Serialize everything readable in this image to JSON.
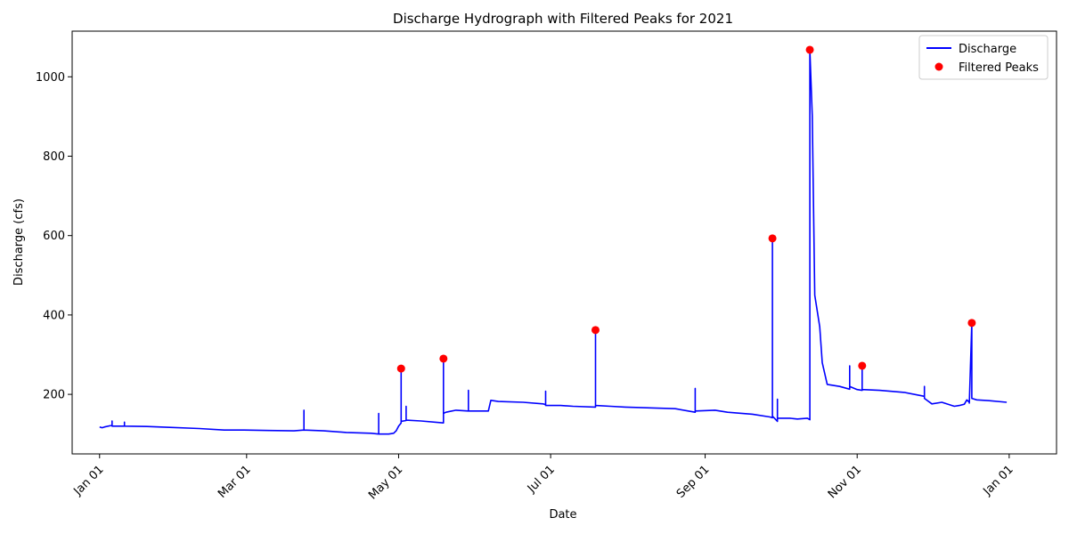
{
  "chart_data": {
    "type": "line",
    "title": "Discharge Hydrograph with Filtered Peaks for 2021",
    "xlabel": "Date",
    "ylabel": "Discharge (cfs)",
    "x_tick_labels": [
      "Jan 01",
      "Mar 01",
      "May 01",
      "Jul 01",
      "Sep 01",
      "Nov 01",
      "Jan 01"
    ],
    "x_ticks": [
      "2021-01-01",
      "2021-03-01",
      "2021-05-01",
      "2021-07-01",
      "2021-09-01",
      "2021-11-01",
      "2022-01-01"
    ],
    "y_ticks": [
      200,
      400,
      600,
      800,
      1000
    ],
    "xlim": [
      "2020-12-21",
      "2022-01-20"
    ],
    "ylim": [
      50,
      1115
    ],
    "grid": false,
    "legend_position": "top-right",
    "colors": {
      "discharge": "#0000ff",
      "peaks": "#ff0000"
    },
    "series": [
      {
        "name": "Discharge",
        "style": "line",
        "x": [
          "2021-01-01",
          "2021-01-02",
          "2021-01-03",
          "2021-01-06",
          "2021-01-06",
          "2021-01-06",
          "2021-01-10",
          "2021-01-11",
          "2021-01-11",
          "2021-01-11",
          "2021-01-20",
          "2021-01-28",
          "2021-02-10",
          "2021-02-20",
          "2021-02-28",
          "2021-03-10",
          "2021-03-20",
          "2021-03-24",
          "2021-03-24",
          "2021-03-24",
          "2021-04-01",
          "2021-04-10",
          "2021-04-20",
          "2021-04-23",
          "2021-04-23",
          "2021-04-23",
          "2021-04-27",
          "2021-04-29",
          "2021-04-30",
          "2021-05-01",
          "2021-05-02",
          "2021-05-02",
          "2021-05-02",
          "2021-05-04",
          "2021-05-04",
          "2021-05-04",
          "2021-05-10",
          "2021-05-19",
          "2021-05-19",
          "2021-05-19",
          "2021-05-20",
          "2021-05-24",
          "2021-05-29",
          "2021-05-29",
          "2021-05-29",
          "2021-06-03",
          "2021-06-06",
          "2021-06-07",
          "2021-06-10",
          "2021-06-20",
          "2021-06-28",
          "2021-06-29",
          "2021-06-29",
          "2021-06-29",
          "2021-07-05",
          "2021-07-10",
          "2021-07-19",
          "2021-07-19",
          "2021-07-19",
          "2021-07-25",
          "2021-07-31",
          "2021-08-10",
          "2021-08-20",
          "2021-08-28",
          "2021-08-28",
          "2021-08-28",
          "2021-09-05",
          "2021-09-10",
          "2021-09-20",
          "2021-09-27",
          "2021-09-28",
          "2021-09-28",
          "2021-09-28",
          "2021-09-30",
          "2021-09-30",
          "2021-09-30",
          "2021-10-05",
          "2021-10-08",
          "2021-10-12",
          "2021-10-13",
          "2021-10-13",
          "2021-10-14",
          "2021-10-15",
          "2021-10-17",
          "2021-10-18",
          "2021-10-20",
          "2021-10-25",
          "2021-10-29",
          "2021-10-29",
          "2021-10-29",
          "2021-11-01",
          "2021-11-03",
          "2021-11-03",
          "2021-11-03",
          "2021-11-10",
          "2021-11-20",
          "2021-11-28",
          "2021-11-28",
          "2021-11-28",
          "2021-12-01",
          "2021-12-05",
          "2021-12-10",
          "2021-12-12",
          "2021-12-14",
          "2021-12-15",
          "2021-12-16",
          "2021-12-16",
          "2021-12-17",
          "2021-12-17",
          "2021-12-19",
          "2021-12-24",
          "2021-12-31"
        ],
        "y": [
          118,
          116,
          118,
          122,
          133,
          120,
          120,
          120,
          130,
          120,
          119,
          117,
          114,
          110,
          110,
          109,
          108,
          110,
          160,
          110,
          108,
          104,
          102,
          100,
          152,
          100,
          100,
          102,
          108,
          120,
          128,
          265,
          132,
          134,
          170,
          135,
          133,
          128,
          290,
          152,
          155,
          160,
          158,
          210,
          158,
          158,
          158,
          185,
          182,
          180,
          176,
          174,
          208,
          172,
          172,
          170,
          168,
          362,
          172,
          170,
          168,
          166,
          164,
          155,
          215,
          158,
          160,
          155,
          150,
          143,
          141,
          593,
          145,
          132,
          188,
          140,
          140,
          138,
          140,
          136,
          1068,
          902,
          450,
          370,
          280,
          225,
          220,
          213,
          272,
          220,
          212,
          210,
          272,
          212,
          210,
          205,
          195,
          220,
          190,
          176,
          180,
          170,
          172,
          175,
          186,
          180,
          178,
          380,
          190,
          186,
          184,
          180
        ]
      },
      {
        "name": "Filtered Peaks",
        "style": "markers",
        "x": [
          "2021-05-02",
          "2021-05-19",
          "2021-07-19",
          "2021-09-28",
          "2021-10-13",
          "2021-11-03",
          "2021-12-17"
        ],
        "y": [
          265,
          290,
          362,
          593,
          1068,
          272,
          380
        ]
      }
    ]
  }
}
